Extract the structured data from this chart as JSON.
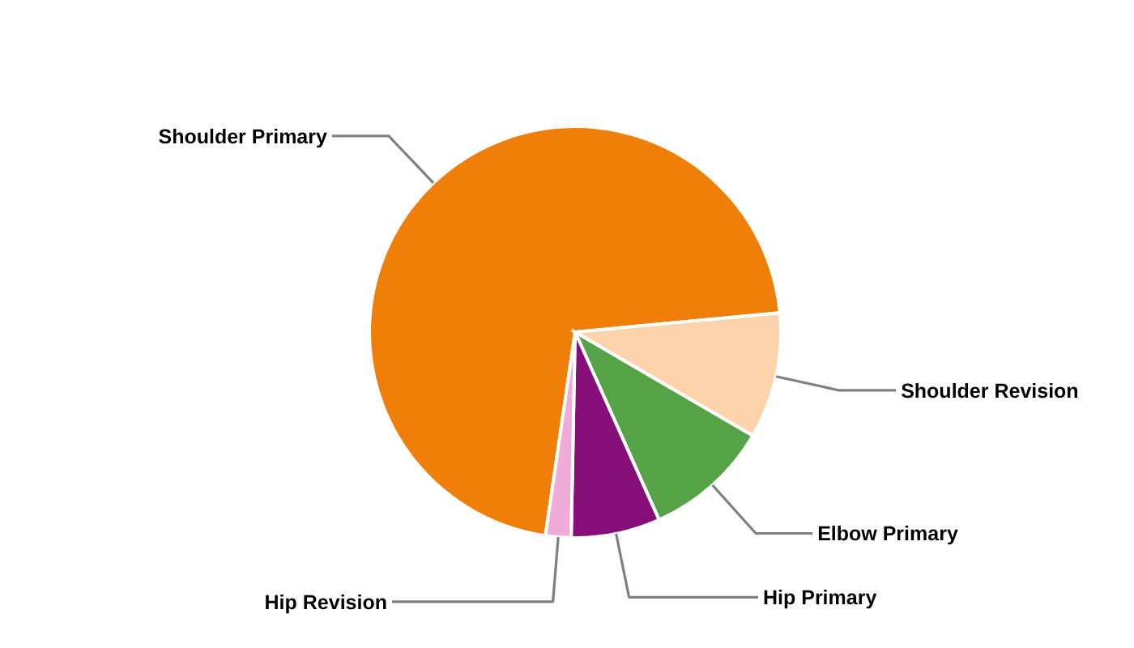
{
  "chart_data": {
    "type": "pie",
    "categories": [
      "Shoulder Primary",
      "Shoulder Revision",
      "Elbow Primary",
      "Hip Primary",
      "Hip Revision"
    ],
    "values": [
      71.2,
      9.9,
      9.9,
      7.0,
      2.0
    ],
    "colors": [
      "#f07f09",
      "#fcd3ab",
      "#55a346",
      "#870f79",
      "#f0abd9"
    ]
  }
}
